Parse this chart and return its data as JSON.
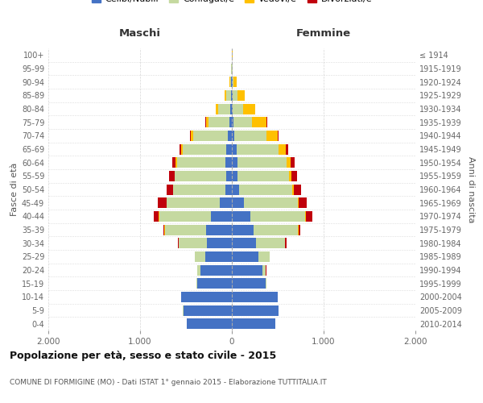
{
  "age_groups": [
    "0-4",
    "5-9",
    "10-14",
    "15-19",
    "20-24",
    "25-29",
    "30-34",
    "35-39",
    "40-44",
    "45-49",
    "50-54",
    "55-59",
    "60-64",
    "65-69",
    "70-74",
    "75-79",
    "80-84",
    "85-89",
    "90-94",
    "95-99",
    "100+"
  ],
  "birth_years": [
    "2010-2014",
    "2005-2009",
    "2000-2004",
    "1995-1999",
    "1990-1994",
    "1985-1989",
    "1980-1984",
    "1975-1979",
    "1970-1974",
    "1965-1969",
    "1960-1964",
    "1955-1959",
    "1950-1954",
    "1945-1949",
    "1940-1944",
    "1935-1939",
    "1930-1934",
    "1925-1929",
    "1920-1924",
    "1915-1919",
    "≤ 1914"
  ],
  "males": {
    "celibe": [
      490,
      530,
      550,
      380,
      340,
      290,
      270,
      280,
      230,
      130,
      70,
      60,
      70,
      65,
      45,
      25,
      15,
      8,
      5,
      2,
      2
    ],
    "coniugato": [
      1,
      1,
      2,
      8,
      35,
      110,
      310,
      450,
      560,
      580,
      570,
      560,
      530,
      470,
      380,
      230,
      130,
      50,
      12,
      3,
      2
    ],
    "vedovo": [
      0,
      0,
      0,
      0,
      1,
      2,
      2,
      3,
      4,
      4,
      4,
      5,
      10,
      15,
      25,
      30,
      30,
      20,
      5,
      1,
      0
    ],
    "divorziato": [
      0,
      0,
      0,
      1,
      2,
      5,
      10,
      15,
      60,
      90,
      70,
      55,
      40,
      20,
      10,
      5,
      3,
      2,
      1,
      0,
      0
    ]
  },
  "females": {
    "nubile": [
      470,
      510,
      500,
      370,
      330,
      290,
      260,
      240,
      200,
      130,
      80,
      60,
      65,
      50,
      30,
      20,
      12,
      8,
      6,
      2,
      2
    ],
    "coniugata": [
      1,
      1,
      2,
      8,
      40,
      120,
      320,
      480,
      600,
      590,
      580,
      560,
      530,
      460,
      350,
      200,
      110,
      50,
      15,
      3,
      2
    ],
    "vedova": [
      0,
      0,
      0,
      0,
      1,
      2,
      3,
      5,
      8,
      10,
      15,
      30,
      45,
      80,
      120,
      160,
      130,
      80,
      30,
      5,
      2
    ],
    "divorziata": [
      0,
      0,
      0,
      1,
      2,
      4,
      10,
      18,
      65,
      90,
      75,
      60,
      45,
      20,
      10,
      5,
      3,
      2,
      1,
      0,
      0
    ]
  },
  "colors": {
    "celibe": "#4472c4",
    "coniugato": "#c5d9a0",
    "vedovo": "#ffc000",
    "divorziato": "#c0000c"
  },
  "title": "Popolazione per età, sesso e stato civile - 2015",
  "subtitle": "COMUNE DI FORMIGINE (MO) - Dati ISTAT 1° gennaio 2015 - Elaborazione TUTTITALIA.IT",
  "ylabel_left": "Fasce di età",
  "ylabel_right": "Anni di nascita",
  "xlabel_left": "Maschi",
  "xlabel_right": "Femmine",
  "xlim": 2000,
  "background_color": "#ffffff",
  "grid_color": "#cccccc"
}
